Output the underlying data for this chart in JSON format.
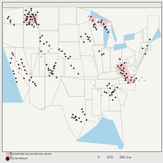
{
  "background_color": "#e8e8e8",
  "map_face_color": "#f5f5f0",
  "water_color": "#a8d4e8",
  "state_edge_color": "#c0c0c0",
  "country_edge_color": "#999999",
  "pink_region_color": "#f0b8b8",
  "dark_dot_color": "#1a1a1a",
  "pink_dot_color": "#e08080",
  "dot_size": 1.5,
  "legend_text_size": 3.0,
  "figsize": [
    1.8,
    1.8
  ],
  "dpi": 100,
  "lon_min": -125,
  "lon_max": -66,
  "lat_min": 24,
  "lat_max": 50
}
